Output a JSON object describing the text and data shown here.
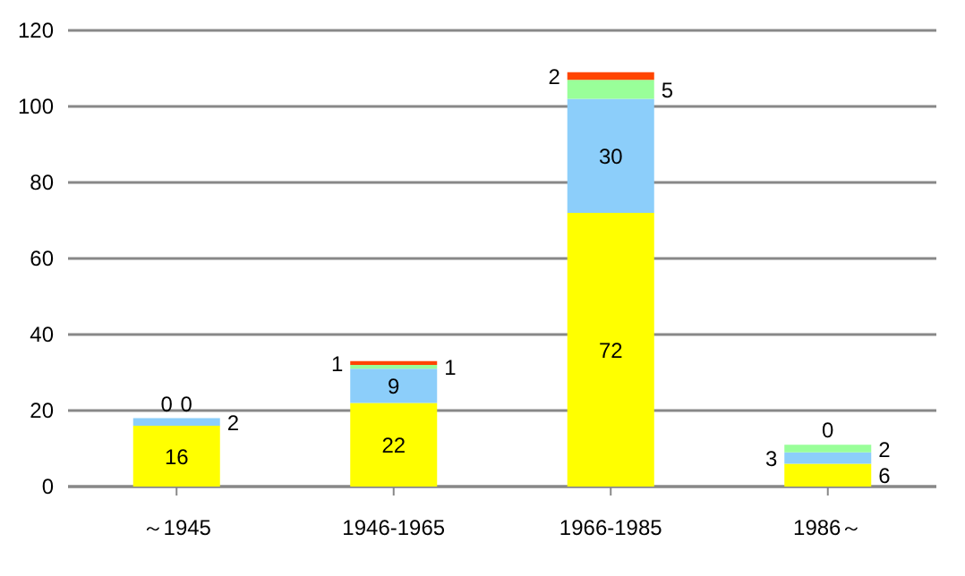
{
  "chart_data": {
    "type": "bar",
    "stacked": true,
    "categories": [
      "～1945",
      "1946-1965",
      "1966-1985",
      "1986～"
    ],
    "series": [
      {
        "color": "#ffff00",
        "values": [
          16,
          22,
          72,
          6
        ]
      },
      {
        "color": "#8ccefa",
        "values": [
          2,
          9,
          30,
          3
        ]
      },
      {
        "color": "#99ff99",
        "values": [
          0,
          1,
          5,
          2
        ]
      },
      {
        "color": "#ff4500",
        "values": [
          0,
          1,
          2,
          0
        ]
      }
    ],
    "ylim": [
      0,
      120
    ],
    "yticks": [
      0,
      20,
      40,
      60,
      80,
      100,
      120
    ],
    "grid": "y",
    "data_labels": true,
    "legend": false
  }
}
